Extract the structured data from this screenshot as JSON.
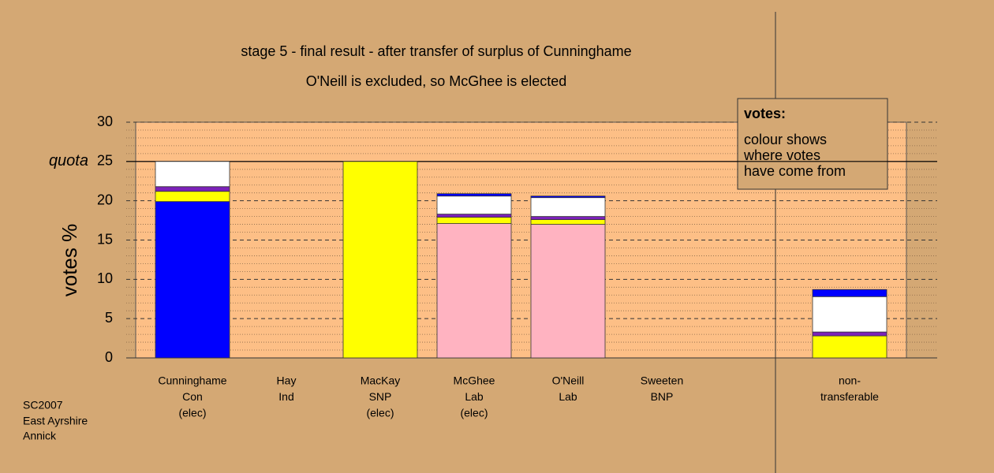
{
  "chart_data": {
    "type": "stacked_bar",
    "title": "stage 5 - final result - after transfer of surplus of Cunninghame",
    "subtitle": "O'Neill is excluded, so McGhee is elected",
    "y_label": "votes %",
    "ylim": [
      0,
      30
    ],
    "yticks": [
      0,
      5,
      10,
      15,
      20,
      25,
      30
    ],
    "quota": {
      "value": 25,
      "label": "quota"
    },
    "categories": [
      [
        "Cunninghame",
        "Con",
        "(elec)"
      ],
      [
        "Hay",
        "Ind"
      ],
      [
        "MacKay",
        "SNP",
        "(elec)"
      ],
      [
        "McGhee",
        "Lab",
        "(elec)"
      ],
      [
        "O'Neill",
        "Lab"
      ],
      [
        "Sweeten",
        "BNP"
      ],
      null,
      [
        "non-",
        "transferable"
      ]
    ],
    "stacks": [
      [
        {
          "color": "#0000ff",
          "value": 19.9
        },
        {
          "color": "#ffff00",
          "value": 1.3
        },
        {
          "color": "#7b22b8",
          "value": 0.6
        },
        {
          "color": "#ffffff",
          "value": 3.2
        }
      ],
      [],
      [
        {
          "color": "#ffff00",
          "value": 25
        }
      ],
      [
        {
          "color": "#ffb3c1",
          "value": 17.1
        },
        {
          "color": "#ffff00",
          "value": 0.8
        },
        {
          "color": "#7b22b8",
          "value": 0.4
        },
        {
          "color": "#ffffff",
          "value": 2.3
        },
        {
          "color": "#0000ff",
          "value": 0.3
        }
      ],
      [
        {
          "color": "#ffb3c1",
          "value": 17.0
        },
        {
          "color": "#ffff00",
          "value": 0.6
        },
        {
          "color": "#7b22b8",
          "value": 0.4
        },
        {
          "color": "#ffffff",
          "value": 2.4
        },
        {
          "color": "#0000ff",
          "value": 0.2
        }
      ],
      [],
      [],
      [
        {
          "color": "#ffff00",
          "value": 2.8
        },
        {
          "color": "#7b22b8",
          "value": 0.5
        },
        {
          "color": "#ffffff",
          "value": 4.5
        },
        {
          "color": "#0000ff",
          "value": 0.9
        }
      ]
    ],
    "legend": {
      "title": "votes:",
      "lines": [
        "colour shows",
        "where votes",
        "have come from"
      ]
    },
    "footnote": [
      "SC2007",
      "East Ayrshire",
      "Annick"
    ]
  }
}
